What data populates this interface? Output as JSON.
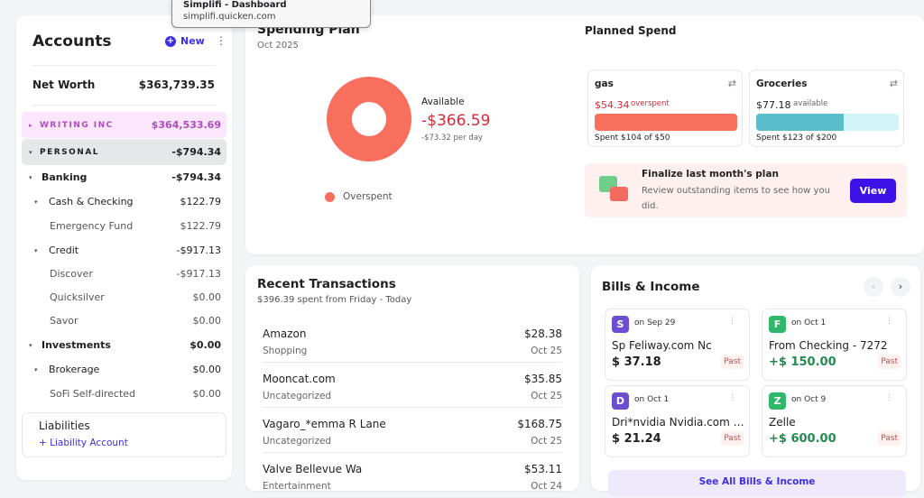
{
  "tooltip": {
    "title": "Simplifi - Dashboard",
    "url": "simplifi.quicken.com"
  },
  "accounts": {
    "title": "Accounts",
    "new_label": "New",
    "net_worth_label": "Net Worth",
    "net_worth": "$363,739.35",
    "rows": [
      {
        "label": "WRITING INC",
        "value": "$364,533.69"
      },
      {
        "label": "PERSONAL",
        "value": "-$794.34"
      },
      {
        "label": "Banking",
        "value": "-$794.34"
      },
      {
        "label": "Cash & Checking",
        "value": "$122.79"
      },
      {
        "label": "Emergency Fund",
        "value": "$122.79"
      },
      {
        "label": "Credit",
        "value": "-$917.13"
      },
      {
        "label": "Discover",
        "value": "-$917.13"
      },
      {
        "label": "Quicksilver",
        "value": "$0.00"
      },
      {
        "label": "Savor",
        "value": "$0.00"
      },
      {
        "label": "Investments",
        "value": "$0.00"
      },
      {
        "label": "Brokerage",
        "value": "$0.00"
      },
      {
        "label": "SoFi Self-directed",
        "value": "$0.00"
      }
    ],
    "liabilities_label": "Liabilities",
    "add_liability": "+ Liability Account"
  },
  "plan": {
    "title": "Spending Plan",
    "month": "Oct 2025",
    "available_label": "Available",
    "available": "-$366.59",
    "per_day": "-$73.32 per day",
    "legend": "Overspent",
    "donut_color": "#f96f5d",
    "planned_title": "Planned Spend",
    "categories": [
      {
        "name": "gas",
        "amount": "$54.34",
        "status": "overspent",
        "spent": "Spent $104 of $50",
        "fill": 1.0
      },
      {
        "name": "Groceries",
        "amount": "$77.18",
        "status": "available",
        "spent": "Spent $123 of $200",
        "fill": 0.615
      }
    ],
    "finalize": {
      "title": "Finalize last month's plan",
      "text": "Review outstanding items to see how you did.",
      "button": "View"
    }
  },
  "transactions": {
    "title": "Recent Transactions",
    "subtitle": "$396.39 spent from Friday - Today",
    "items": [
      {
        "name": "Amazon",
        "category": "Shopping",
        "amount": "$28.38",
        "date": "Oct 25"
      },
      {
        "name": "Mooncat.com",
        "category": "Uncategorized",
        "amount": "$35.85",
        "date": "Oct 25"
      },
      {
        "name": "Vagaro_*emma R Lane",
        "category": "Uncategorized",
        "amount": "$168.75",
        "date": "Oct 25"
      },
      {
        "name": "Valve Bellevue Wa",
        "category": "Entertainment",
        "amount": "$53.11",
        "date": "Oct 24"
      }
    ]
  },
  "bills": {
    "title": "Bills & Income",
    "see_all": "See All Bills & Income",
    "items": [
      {
        "initial": "S",
        "date": "on Sep 29",
        "name": "Sp Feliway.com Nc",
        "amount": "$ 37.18",
        "status": "Past",
        "color": "#6c4fd1"
      },
      {
        "initial": "F",
        "date": "on Oct 1",
        "name": "From Checking - 7272",
        "amount": "+$ 150.00",
        "status": "Past",
        "color": "#2fb86a"
      },
      {
        "initial": "D",
        "date": "on Oct 1",
        "name": "Dri*nvidia Nvidia.com M...",
        "amount": "$ 21.24",
        "status": "Past",
        "color": "#6c4fd1"
      },
      {
        "initial": "Z",
        "date": "on Oct 9",
        "name": "Zelle",
        "amount": "+$ 600.00",
        "status": "Past",
        "color": "#2fb86a"
      }
    ]
  }
}
